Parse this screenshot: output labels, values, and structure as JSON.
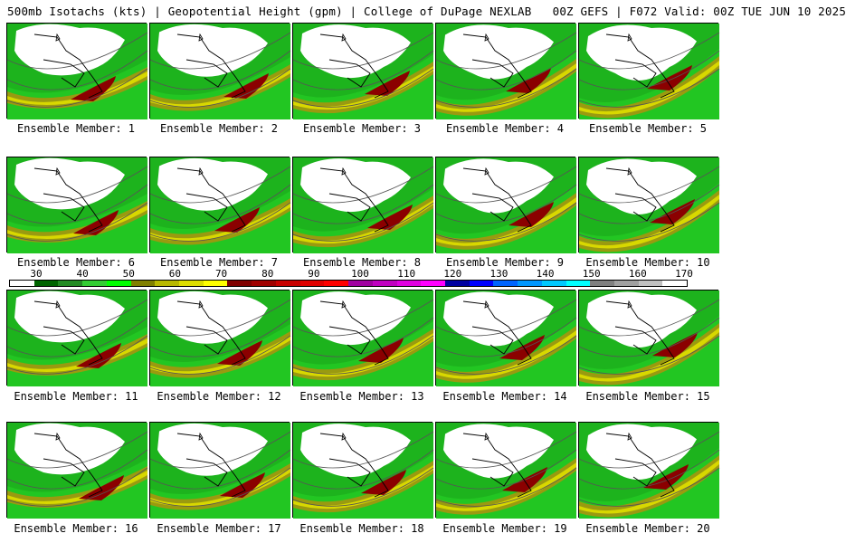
{
  "header": {
    "title": "500mb Isotachs (kts) | Geopotential Height (gpm) | College of DuPage NEXLAB   00Z GEFS | F072 Valid: 00Z TUE JUN 10 2025"
  },
  "colorbar": {
    "ticks": [
      "30",
      "40",
      "50",
      "60",
      "70",
      "80",
      "90",
      "100",
      "110",
      "120",
      "130",
      "140",
      "150",
      "160",
      "170"
    ],
    "colors": [
      "#ffffff",
      "#006400",
      "#228b22",
      "#32cd32",
      "#00ff00",
      "#808000",
      "#b8b800",
      "#dddd00",
      "#ffff00",
      "#800000",
      "#a00000",
      "#c80000",
      "#e00000",
      "#ff0000",
      "#a000a0",
      "#c000c0",
      "#e000e0",
      "#ff00ff",
      "#0000a0",
      "#0000ff",
      "#0064ff",
      "#0096ff",
      "#00c8ff",
      "#00ffff",
      "#808080",
      "#a0a0a0",
      "#c0c0c0",
      "#ffffff"
    ]
  },
  "members": [
    {
      "label": "Ensemble Member: 1"
    },
    {
      "label": "Ensemble Member: 2"
    },
    {
      "label": "Ensemble Member: 3"
    },
    {
      "label": "Ensemble Member: 4"
    },
    {
      "label": "Ensemble Member: 5"
    },
    {
      "label": "Ensemble Member: 6"
    },
    {
      "label": "Ensemble Member: 7"
    },
    {
      "label": "Ensemble Member: 8"
    },
    {
      "label": "Ensemble Member: 9"
    },
    {
      "label": "Ensemble Member: 10"
    },
    {
      "label": "Ensemble Member: 11"
    },
    {
      "label": "Ensemble Member: 12"
    },
    {
      "label": "Ensemble Member: 13"
    },
    {
      "label": "Ensemble Member: 14"
    },
    {
      "label": "Ensemble Member: 15"
    },
    {
      "label": "Ensemble Member: 16"
    },
    {
      "label": "Ensemble Member: 17"
    },
    {
      "label": "Ensemble Member: 18"
    },
    {
      "label": "Ensemble Member: 19"
    },
    {
      "label": "Ensemble Member: 20"
    }
  ]
}
